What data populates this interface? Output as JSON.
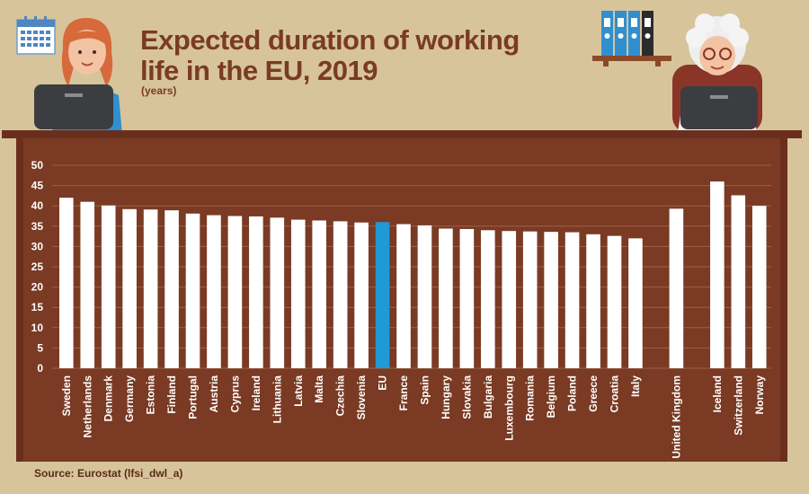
{
  "title": "Expected duration of working life in the EU, 2019",
  "subtitle": "(years)",
  "source": "Source: Eurostat (lfsi_dwl_a)",
  "colors": {
    "background": "#d7c49b",
    "panel": "#7a3a23",
    "gridline": "#9c6148",
    "bar": "#ffffff",
    "highlight": "#1f9ad6",
    "title": "#7a3b24"
  },
  "icons": [
    "calendar-icon",
    "laptop-icon",
    "binders-icon"
  ],
  "chart_data": {
    "type": "bar",
    "title": "Expected duration of working life in the EU, 2019",
    "subtitle": "(years)",
    "ylim": [
      0,
      50
    ],
    "yticks": [
      0,
      5,
      10,
      15,
      20,
      25,
      30,
      35,
      40,
      45,
      50
    ],
    "grid": true,
    "highlight_category": "EU",
    "categories": [
      "Sweden",
      "Netherlands",
      "Denmark",
      "Germany",
      "Estonia",
      "Finland",
      "Portugal",
      "Austria",
      "Cyprus",
      "Ireland",
      "Lithuania",
      "Latvia",
      "Malta",
      "Czechia",
      "Slovenia",
      "EU",
      "France",
      "Spain",
      "Hungary",
      "Slovakia",
      "Bulgaria",
      "Luxembourg",
      "Romania",
      "Belgium",
      "Poland",
      "Greece",
      "Croatia",
      "Italy",
      "United Kingdom",
      "Iceland",
      "Switzerland",
      "Norway"
    ],
    "groups": [
      28,
      1,
      3
    ],
    "values": [
      42.0,
      41.0,
      40.1,
      39.2,
      39.1,
      38.9,
      38.1,
      37.7,
      37.5,
      37.4,
      37.1,
      36.6,
      36.4,
      36.2,
      35.9,
      36.0,
      35.5,
      35.2,
      34.4,
      34.3,
      34.0,
      33.8,
      33.7,
      33.6,
      33.5,
      33.0,
      32.6,
      32.0,
      39.3,
      46.0,
      42.6,
      40.0
    ]
  }
}
